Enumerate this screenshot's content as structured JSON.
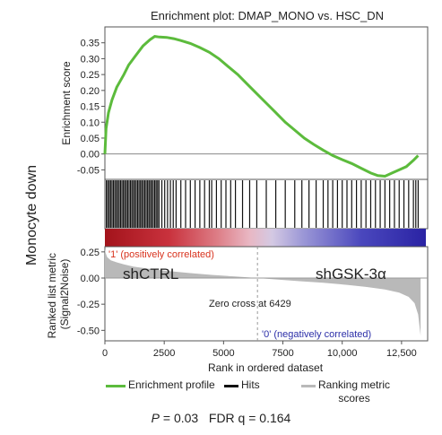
{
  "figure": {
    "side_label": "Monocyte down",
    "stats": {
      "p_symbol": "P",
      "p_text": " = 0.03   FDR q = 0.164"
    }
  },
  "chart_data": {
    "type": "line",
    "title": "Enrichment plot: DMAP_MONO vs. HSC_DN",
    "xlabel": "Rank in ordered dataset",
    "xlim": [
      0,
      13600
    ],
    "x_ticks": [
      "0",
      "2500",
      "5000",
      "7500",
      "10,000",
      "12,500"
    ],
    "x_tick_values": [
      0,
      2500,
      5000,
      7500,
      10000,
      12500
    ],
    "enrichment": {
      "ylabel": "Enrichment score",
      "ylim": [
        -0.08,
        0.4
      ],
      "y_ticks": [
        "0.35",
        "0.30",
        "0.25",
        "0.20",
        "0.15",
        "0.10",
        "0.05",
        "0.00",
        "-0.05"
      ],
      "y_tick_values": [
        0.35,
        0.3,
        0.25,
        0.2,
        0.15,
        0.1,
        0.05,
        0.0,
        -0.05
      ],
      "series": [
        {
          "name": "Enrichment profile",
          "color": "#5cbb3c",
          "x": [
            0,
            50,
            150,
            300,
            500,
            800,
            1000,
            1300,
            1600,
            1900,
            2100,
            2300,
            2600,
            2900,
            3200,
            3600,
            4000,
            4400,
            4800,
            5200,
            5600,
            6000,
            6400,
            6800,
            7200,
            7600,
            8000,
            8400,
            8800,
            9200,
            9600,
            10000,
            10400,
            10800,
            11200,
            11500,
            11800,
            12100,
            12400,
            12700,
            13000,
            13200
          ],
          "y": [
            0.0,
            0.08,
            0.13,
            0.17,
            0.21,
            0.25,
            0.28,
            0.31,
            0.34,
            0.36,
            0.37,
            0.368,
            0.367,
            0.363,
            0.357,
            0.348,
            0.335,
            0.32,
            0.3,
            0.275,
            0.25,
            0.22,
            0.19,
            0.16,
            0.13,
            0.1,
            0.075,
            0.05,
            0.03,
            0.012,
            -0.005,
            -0.018,
            -0.03,
            -0.045,
            -0.06,
            -0.068,
            -0.07,
            -0.06,
            -0.05,
            -0.04,
            -0.02,
            -0.005
          ]
        }
      ]
    },
    "hits": {
      "name": "Hits",
      "color": "#111111",
      "x": [
        60,
        120,
        180,
        240,
        300,
        360,
        420,
        480,
        540,
        600,
        660,
        720,
        780,
        840,
        900,
        960,
        1020,
        1080,
        1140,
        1200,
        1260,
        1320,
        1380,
        1440,
        1500,
        1560,
        1620,
        1680,
        1740,
        1800,
        1860,
        1920,
        1980,
        2040,
        2100,
        2160,
        2220,
        2280,
        2400,
        2520,
        2640,
        2760,
        2880,
        3000,
        3200,
        3400,
        3600,
        3800,
        4000,
        4200,
        4400,
        4500,
        4700,
        4900,
        5100,
        5300,
        5500,
        5800,
        6100,
        6400,
        6800,
        7200,
        7600,
        8000,
        8300,
        8600,
        8900,
        9200,
        9400,
        9600,
        9800,
        10000,
        10200,
        10400,
        10600,
        10800,
        11000,
        11200,
        11400,
        11600,
        11800,
        12000,
        12200,
        12400,
        12600,
        12800,
        13000,
        13100,
        13200
      ]
    },
    "ranked_metric": {
      "ylabel": "Ranked list metric\n(Signal2Noise)",
      "ylim": [
        -0.6,
        0.3
      ],
      "y_ticks": [
        "0.25",
        "0.00",
        "-0.25",
        "-0.50"
      ],
      "y_tick_values": [
        0.25,
        0.0,
        -0.25,
        -0.5
      ],
      "series": [
        {
          "name": "Ranking metric scores",
          "color": "#b9b9b9",
          "x": [
            0,
            30,
            100,
            250,
            500,
            800,
            1200,
            1800,
            2500,
            3500,
            4500,
            5500,
            6429,
            7300,
            8200,
            9200,
            10200,
            11000,
            11800,
            12400,
            12800,
            13050,
            13200,
            13300
          ],
          "y": [
            0.28,
            0.24,
            0.2,
            0.17,
            0.15,
            0.13,
            0.11,
            0.09,
            0.07,
            0.05,
            0.03,
            0.015,
            0.0,
            -0.015,
            -0.03,
            -0.045,
            -0.065,
            -0.085,
            -0.11,
            -0.14,
            -0.18,
            -0.24,
            -0.35,
            -0.55
          ]
        }
      ],
      "zero_cross_x": 6429,
      "zero_cross_label": "Zero cross at 6429",
      "positive_label": "'1' (positively correlated)",
      "negative_label": "'0' (negatively correlated)",
      "left_group": "shCTRL",
      "right_group": "shGSK-3α"
    },
    "heatbar": {
      "colors": [
        "#a3131b",
        "#c9323d",
        "#dd7d86",
        "#e9b7c3",
        "#d4c9e3",
        "#9a96d6",
        "#4a47bd",
        "#2a23a4"
      ],
      "stops": [
        0,
        0.2,
        0.35,
        0.45,
        0.52,
        0.62,
        0.8,
        1.0
      ]
    },
    "legend": [
      {
        "label": "Enrichment profile",
        "color": "#5cbb3c"
      },
      {
        "label": "Hits",
        "color": "#111111"
      },
      {
        "label": "Ranking metric\nscores",
        "color": "#b9b9b9"
      }
    ],
    "legend_placement": "bottom"
  }
}
